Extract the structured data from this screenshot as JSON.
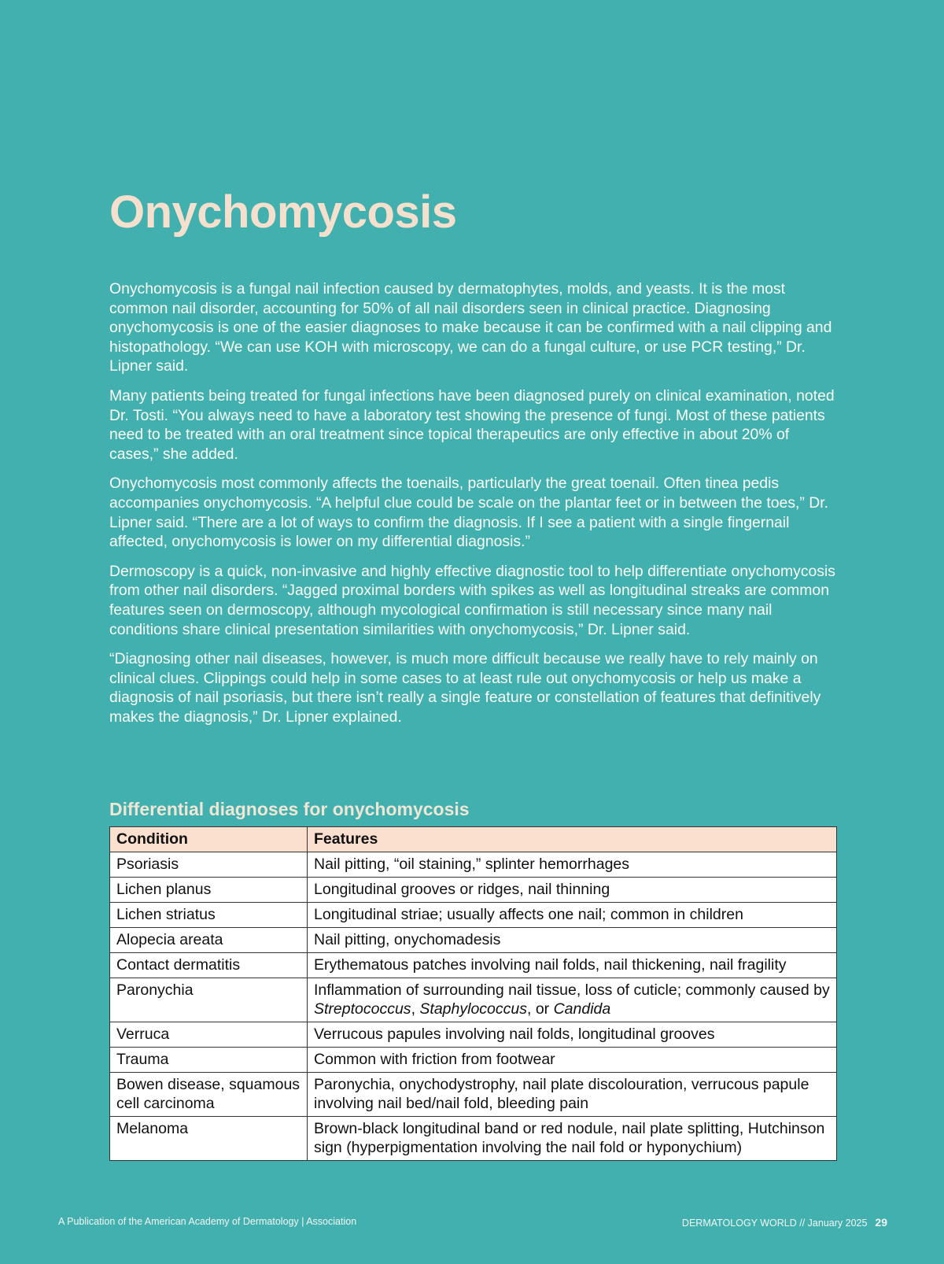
{
  "title": "Onychomycosis",
  "paragraphs": [
    "Onychomycosis is a fungal nail infection caused by dermatophytes, molds, and yeasts. It is the most common nail disorder, accounting for 50% of all nail disorders seen in clinical practice. Diagnosing onychomycosis is one of the easier diagnoses to make because it can be confirmed with a nail clipping and histopathology. “We can use KOH with microscopy, we can do a fungal culture, or use PCR testing,” Dr. Lipner said.",
    "Many patients being treated for fungal infections have been diagnosed purely on clinical examination, noted Dr. Tosti. “You always need to have a laboratory test showing the presence of fungi. Most of these patients need to be treated with an oral treatment since topical therapeutics are only effective in about 20% of cases,” she added.",
    "Onychomycosis most commonly affects the toenails, particularly the great toenail. Often tinea pedis accompanies onychomycosis. “A helpful clue could be scale on the plantar feet or in between the toes,” Dr. Lipner said. “There are a lot of ways to confirm the diagnosis. If I see a patient with a single fingernail affected, onychomycosis is lower on my differential diagnosis.”",
    "Dermoscopy is a quick, non-invasive and highly effective diagnostic tool to help differentiate onychomycosis from other nail disorders. “Jagged proximal borders with spikes as well as longitudinal streaks are common features seen on dermoscopy, although mycological confirmation is still necessary since many nail conditions share clinical presentation similarities with onychomycosis,” Dr. Lipner said.",
    "“Diagnosing other nail diseases, however, is much more difficult because we really have to rely mainly on clinical clues. Clippings could help in some cases to at least rule out onychomycosis or help us make a diagnosis of nail psoriasis, but there isn’t really a single feature or constellation of features that definitively makes the diagnosis,” Dr. Lipner explained."
  ],
  "table": {
    "title": "Differential diagnoses for onychomycosis",
    "headers": [
      "Condition",
      "Features"
    ],
    "rows": [
      [
        "Psoriasis",
        "Nail pitting, “oil staining,” splinter hemorrhages"
      ],
      [
        "Lichen planus",
        "Longitudinal grooves or ridges, nail thinning"
      ],
      [
        "Lichen striatus",
        "Longitudinal striae; usually affects one nail; common in children"
      ],
      [
        "Alopecia areata",
        "Nail pitting, onychomadesis"
      ],
      [
        "Contact dermatitis",
        "Erythematous patches involving nail folds, nail thickening, nail fragility"
      ],
      [
        "Paronychia",
        "Inflammation of surrounding nail tissue, loss of cuticle; commonly caused by Streptococcus, Staphylococcus, or Candida"
      ],
      [
        "Verruca",
        "Verrucous papules involving nail folds, longitudinal grooves"
      ],
      [
        "Trauma",
        "Common with friction from footwear"
      ],
      [
        "Bowen disease, squamous cell carcinoma",
        "Paronychia, onychodystrophy, nail plate discolouration, verrucous papule involving nail bed/nail fold, bleeding pain"
      ],
      [
        "Melanoma",
        "Brown-black longitudinal band or red nodule, nail plate splitting, Hutchinson sign (hyperpigmentation involving the nail fold or hyponychium)"
      ]
    ]
  },
  "footer": {
    "left": "A Publication of the American Academy of Dermatology | Association",
    "right": "DERMATOLOGY WORLD // January 2025",
    "page": "29"
  },
  "colors": {
    "background": "#42b0ae",
    "title": "#f4e0cc",
    "table_header": "#fbdfcf"
  }
}
